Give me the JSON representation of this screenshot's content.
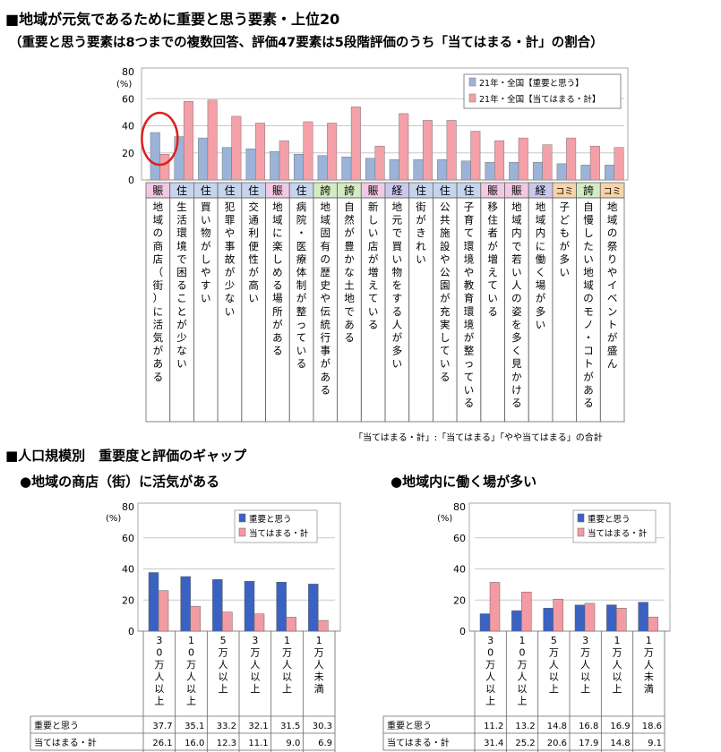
{
  "main_title": "■地域が元気であるために重要と思う要素・上位20",
  "main_subtitle": "（重要と思う要素は8つまでの複数回答、評価47要素は5段階評価のうち「当てはまる・計」の割合）",
  "main_note": "「当てはまる・計」:「当てはまる」「やや当てはまる」の合計",
  "section2_title": "■人口規模別　重要度と評価のギャップ",
  "colors": {
    "importance": "#9bb3d8",
    "evaluation": "#f4a0a8",
    "importance_small": "#3a62c2",
    "evaluation_small": "#f39aa3",
    "circle": "#e01e1e",
    "cat_賑": "#f2c9e4",
    "cat_住": "#c6d5ec",
    "cat_誇": "#d3ebc2",
    "cat_経": "#c9c9ef",
    "cat_コミ": "#f7d3a9"
  },
  "chart_data": [
    {
      "type": "bar",
      "ylabel": "(%)",
      "ylim": [
        0,
        80
      ],
      "yticks": [
        0,
        20,
        40,
        60,
        80
      ],
      "legend_position": "top-right",
      "series": [
        {
          "name": "21年・全国【重要と思う】",
          "values": [
            35,
            32,
            31,
            24,
            23,
            21,
            19,
            18,
            17,
            16,
            15,
            15,
            15,
            14,
            13,
            13,
            13,
            12,
            11,
            11
          ]
        },
        {
          "name": "21年・全国【当てはまる・計】",
          "values": [
            19,
            58,
            59,
            47,
            42,
            29,
            43,
            42,
            54,
            25,
            49,
            44,
            44,
            36,
            29,
            31,
            26,
            31,
            25,
            24
          ]
        }
      ],
      "category_tags": [
        "賑",
        "住",
        "住",
        "住",
        "住",
        "賑",
        "住",
        "誇",
        "誇",
        "賑",
        "経",
        "住",
        "住",
        "住",
        "賑",
        "賑",
        "経",
        "コミ",
        "誇",
        "コミ"
      ],
      "categories": [
        "地域の商店（街）に活気がある",
        "生活環境で困ることが少ない",
        "買い物がしやすい",
        "犯罪や事故が少ない",
        "交通利便性が高い",
        "地域に楽しめる場所がある",
        "病院・医療体制が整っている",
        "地域固有の歴史や伝統行事がある",
        "自然が豊かな土地である",
        "新しい店が増えている",
        "地元で買い物をする人が多い",
        "街がきれい",
        "公共施設や公園が充実している",
        "子育て環境や教育環境が整っている",
        "移住者が増えている",
        "地域内で若い人の姿を多く見かける",
        "地域内に働く場が多い",
        "子どもが多い",
        "自慢したい地域のモノ・コトがある",
        "地域の祭りやイベントが盛ん"
      ]
    },
    {
      "type": "bar",
      "title": "●地域の商店（街）に活気がある",
      "ylabel": "(%)",
      "ylim": [
        0,
        80
      ],
      "yticks": [
        0,
        20,
        40,
        60,
        80
      ],
      "legend_position": "top-right",
      "categories": [
        "30万人以上",
        "10万人以上",
        "5万人以上",
        "3万人以上",
        "1万人以上",
        "1万人未満"
      ],
      "series": [
        {
          "name": "重要と思う",
          "values": [
            37.7,
            35.1,
            33.2,
            32.1,
            31.5,
            30.3
          ]
        },
        {
          "name": "当てはまる・計",
          "values": [
            26.1,
            16.0,
            12.3,
            11.1,
            9.0,
            6.9
          ]
        }
      ],
      "table_rows": [
        {
          "label": "重要と思う",
          "values": [
            "37.7",
            "35.1",
            "33.2",
            "32.1",
            "31.5",
            "30.3"
          ]
        },
        {
          "label": "当てはまる・計",
          "values": [
            "26.1",
            "16.0",
            "12.3",
            "11.1",
            "9.0",
            "6.9"
          ]
        }
      ]
    },
    {
      "type": "bar",
      "title": "●地域内に働く場が多い",
      "ylabel": "(%)",
      "ylim": [
        0,
        80
      ],
      "yticks": [
        0,
        20,
        40,
        60,
        80
      ],
      "legend_position": "top-right",
      "categories": [
        "30万人以上",
        "10万人以上",
        "5万人以上",
        "3万人以上",
        "1万人以上",
        "1万人未満"
      ],
      "series": [
        {
          "name": "重要と思う",
          "values": [
            11.2,
            13.2,
            14.8,
            16.8,
            16.9,
            18.6
          ]
        },
        {
          "name": "当てはまる・計",
          "values": [
            31.4,
            25.2,
            20.6,
            17.9,
            14.8,
            9.1
          ]
        }
      ],
      "table_rows": [
        {
          "label": "重要と思う",
          "values": [
            "11.2",
            "13.2",
            "14.8",
            "16.8",
            "16.9",
            "18.6"
          ]
        },
        {
          "label": "当てはまる・計",
          "values": [
            "31.4",
            "25.2",
            "20.6",
            "17.9",
            "14.8",
            "9.1"
          ]
        }
      ]
    }
  ]
}
